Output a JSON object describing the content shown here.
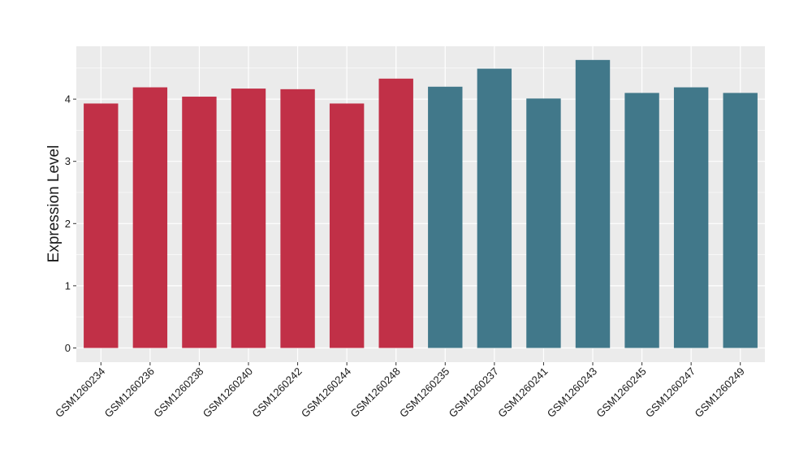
{
  "chart_data": {
    "type": "bar",
    "title": "",
    "xlabel": "",
    "ylabel": "Expression Level",
    "ylim": [
      0,
      4.85
    ],
    "yticks": [
      0,
      1,
      2,
      3,
      4
    ],
    "grid": true,
    "legend": "none",
    "categories": [
      "GSM1260234",
      "GSM1260236",
      "GSM1260238",
      "GSM1260240",
      "GSM1260242",
      "GSM1260244",
      "GSM1260248",
      "GSM1260235",
      "GSM1260237",
      "GSM1260241",
      "GSM1260243",
      "GSM1260245",
      "GSM1260247",
      "GSM1260249"
    ],
    "values": [
      3.93,
      4.19,
      4.04,
      4.17,
      4.16,
      3.93,
      4.33,
      4.2,
      4.49,
      4.01,
      4.63,
      4.1,
      4.19,
      4.1
    ],
    "groups": [
      0,
      0,
      0,
      0,
      0,
      0,
      0,
      1,
      1,
      1,
      1,
      1,
      1,
      1
    ],
    "group_colors": [
      "#c13047",
      "#41788a"
    ],
    "panel_background": "#ebebeb",
    "grid_color": "#ffffff"
  }
}
